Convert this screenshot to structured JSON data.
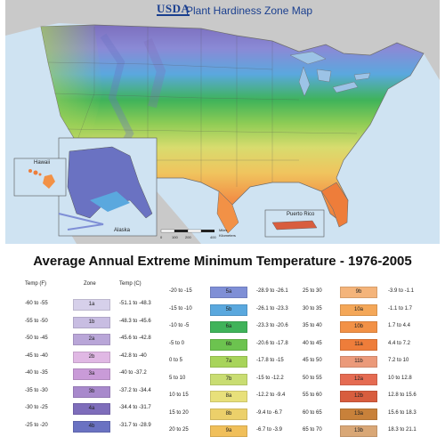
{
  "map": {
    "logo_text": "USDA",
    "title": "Plant Hardiness Zone Map",
    "insets": {
      "alaska": "Alaska",
      "hawaii": "Hawaii",
      "puerto_rico": "Puerto Rico"
    },
    "scale": {
      "miles": "Miles",
      "kilometers": "Kilometers",
      "ticks": [
        "0",
        "100",
        "200",
        "400"
      ]
    }
  },
  "legend": {
    "title": "Average Annual Extreme Minimum Temperature - 1976-2005",
    "headers": {
      "temp_f": "Temp (F)",
      "zone": "Zone",
      "temp_c": "Temp (C)"
    },
    "columns": [
      [
        {
          "f": "-60 to -55",
          "zone": "1a",
          "c": "-51.1 to -48.3",
          "color": "#d6d0ea"
        },
        {
          "f": "-55 to -50",
          "zone": "1b",
          "c": "-48.3 to -45.6",
          "color": "#c8bde2"
        },
        {
          "f": "-50 to -45",
          "zone": "2a",
          "c": "-45.6 to -42.8",
          "color": "#b9a6d8"
        },
        {
          "f": "-45 to -40",
          "zone": "2b",
          "c": "-42.8 to -40",
          "color": "#e0b8e4"
        },
        {
          "f": "-40 to -35",
          "zone": "3a",
          "c": "-40 to -37.2",
          "color": "#c99bd8"
        },
        {
          "f": "-35 to -30",
          "zone": "3b",
          "c": "-37.2 to -34.4",
          "color": "#a889cc"
        },
        {
          "f": "-30 to -25",
          "zone": "4a",
          "c": "-34.4 to -31.7",
          "color": "#7e6dbb"
        },
        {
          "f": "-25 to -20",
          "zone": "4b",
          "c": "-31.7 to -28.9",
          "color": "#6a72c2"
        }
      ],
      [
        {
          "f": "-20 to -15",
          "zone": "5a",
          "c": "-28.9 to -26.1",
          "color": "#7f8fd6"
        },
        {
          "f": "-15 to -10",
          "zone": "5b",
          "c": "-26.1 to -23.3",
          "color": "#5aa8de"
        },
        {
          "f": "-10 to -5",
          "zone": "6a",
          "c": "-23.3 to -20.6",
          "color": "#3fb35a"
        },
        {
          "f": "-5 to 0",
          "zone": "6b",
          "c": "-20.6 to -17.8",
          "color": "#6cc34f"
        },
        {
          "f": "0 to 5",
          "zone": "7a",
          "c": "-17.8 to -15",
          "color": "#a8d45a"
        },
        {
          "f": "5 to 10",
          "zone": "7b",
          "c": "-15 to -12.2",
          "color": "#c9dd72"
        },
        {
          "f": "10 to 15",
          "zone": "8a",
          "c": "-12.2 to -9.4",
          "color": "#e8e07a"
        },
        {
          "f": "15 to 20",
          "zone": "8b",
          "c": "-9.4 to -6.7",
          "color": "#ecd06a"
        },
        {
          "f": "20 to 25",
          "zone": "9a",
          "c": "-6.7 to -3.9",
          "color": "#f0bf5a"
        }
      ],
      [
        {
          "f": "25 to 30",
          "zone": "9b",
          "c": "-3.9 to -1.1",
          "color": "#f4b47a"
        },
        {
          "f": "30 to 35",
          "zone": "10a",
          "c": "-1.1 to 1.7",
          "color": "#f4a758"
        },
        {
          "f": "35 to 40",
          "zone": "10b",
          "c": "1.7 to 4.4",
          "color": "#f29146"
        },
        {
          "f": "40 to 45",
          "zone": "11a",
          "c": "4.4 to 7.2",
          "color": "#ee7d3a"
        },
        {
          "f": "45 to 50",
          "zone": "11b",
          "c": "7.2 to 10",
          "color": "#eb9a7a"
        },
        {
          "f": "50 to 55",
          "zone": "12a",
          "c": "10 to 12.8",
          "color": "#e56b52"
        },
        {
          "f": "55 to 60",
          "zone": "12b",
          "c": "12.8 to 15.6",
          "color": "#d85d3e"
        },
        {
          "f": "60 to 65",
          "zone": "13a",
          "c": "15.6 to 18.3",
          "color": "#c8813a"
        },
        {
          "f": "65 to 70",
          "zone": "13b",
          "c": "18.3 to 21.1",
          "color": "#d9a776"
        }
      ]
    ]
  }
}
